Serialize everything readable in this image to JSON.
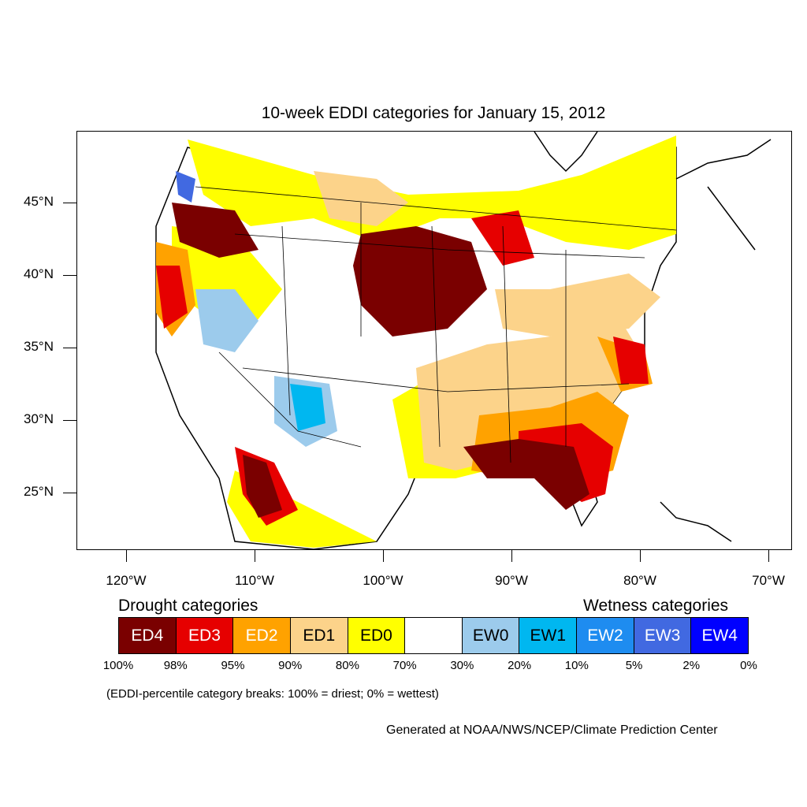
{
  "title": "10-week EDDI categories for January 15, 2012",
  "latitude_labels": [
    "45°N",
    "40°N",
    "35°N",
    "30°N",
    "25°N"
  ],
  "longitude_labels": [
    "120°W",
    "110°W",
    "100°W",
    "90°W",
    "80°W",
    "70°W"
  ],
  "legend": {
    "drought_heading": "Drought categories",
    "wetness_heading": "Wetness categories",
    "categories": [
      {
        "label": "ED4",
        "color": "#7a0000",
        "text_color": "#ffffff"
      },
      {
        "label": "ED3",
        "color": "#e60000",
        "text_color": "#ffffff"
      },
      {
        "label": "ED2",
        "color": "#ffa200",
        "text_color": "#ffffff"
      },
      {
        "label": "ED1",
        "color": "#fcd38a",
        "text_color": "#000000"
      },
      {
        "label": "ED0",
        "color": "#ffff00",
        "text_color": "#000000"
      },
      {
        "label": "",
        "color": "#ffffff",
        "text_color": "#000000"
      },
      {
        "label": "EW0",
        "color": "#9ccbec",
        "text_color": "#000000"
      },
      {
        "label": "EW1",
        "color": "#00b7f0",
        "text_color": "#000000"
      },
      {
        "label": "EW2",
        "color": "#1e8cf0",
        "text_color": "#ffffff"
      },
      {
        "label": "EW3",
        "color": "#4169e1",
        "text_color": "#ffffff"
      },
      {
        "label": "EW4",
        "color": "#0000ff",
        "text_color": "#ffffff"
      }
    ],
    "breaks": [
      "100%",
      "98%",
      "95%",
      "90%",
      "80%",
      "70%",
      "30%",
      "20%",
      "10%",
      "5%",
      "2%",
      "0%"
    ]
  },
  "note": "(EDDI-percentile category breaks: 100% = driest; 0% = wettest)",
  "credit": "Generated at NOAA/NWS/NCEP/Climate Prediction Center"
}
